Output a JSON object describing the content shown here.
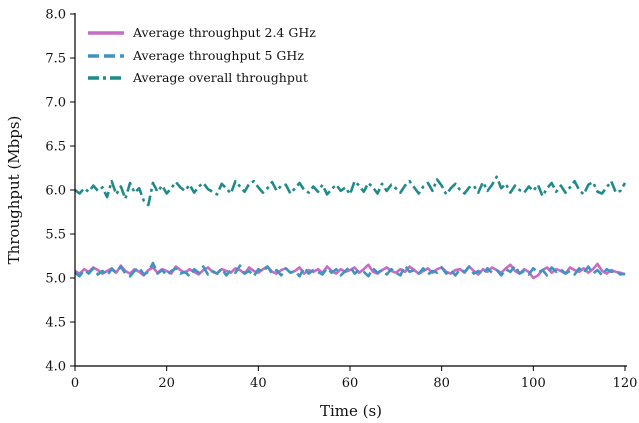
{
  "chart_data": {
    "type": "line",
    "title": "",
    "xlabel": "Time (s)",
    "ylabel": "Throughput (Mbps)",
    "xlim": [
      0,
      120
    ],
    "ylim": [
      4.0,
      8.0
    ],
    "x_ticks": [
      "0",
      "20",
      "40",
      "60",
      "80",
      "100",
      "120"
    ],
    "y_ticks": [
      "4.0",
      "4.5",
      "5.0",
      "5.5",
      "6.0",
      "6.5",
      "7.0",
      "7.5",
      "8.0"
    ],
    "grid": false,
    "legend_position": "top-left",
    "x": [
      0,
      1,
      2,
      3,
      4,
      5,
      6,
      7,
      8,
      9,
      10,
      11,
      12,
      13,
      14,
      15,
      16,
      17,
      18,
      19,
      20,
      21,
      22,
      23,
      24,
      25,
      26,
      27,
      28,
      29,
      30,
      31,
      32,
      33,
      34,
      35,
      36,
      37,
      38,
      39,
      40,
      41,
      42,
      43,
      44,
      45,
      46,
      47,
      48,
      49,
      50,
      51,
      52,
      53,
      54,
      55,
      56,
      57,
      58,
      59,
      60,
      61,
      62,
      63,
      64,
      65,
      66,
      67,
      68,
      69,
      70,
      71,
      72,
      73,
      74,
      75,
      76,
      77,
      78,
      79,
      80,
      81,
      82,
      83,
      84,
      85,
      86,
      87,
      88,
      89,
      90,
      91,
      92,
      93,
      94,
      95,
      96,
      97,
      98,
      99,
      100,
      101,
      102,
      103,
      104,
      105,
      106,
      107,
      108,
      109,
      110,
      111,
      112,
      113,
      114,
      115,
      116,
      117,
      118,
      119,
      120
    ],
    "series": [
      {
        "name": "Average throughput 2.4 GHz",
        "color": "#c76bc6",
        "style": "solid",
        "values": [
          5.08,
          5.05,
          5.1,
          5.07,
          5.12,
          5.09,
          5.05,
          5.08,
          5.11,
          5.06,
          5.14,
          5.08,
          5.05,
          5.1,
          5.07,
          5.03,
          5.09,
          5.12,
          5.06,
          5.1,
          5.08,
          5.05,
          5.13,
          5.09,
          5.06,
          5.1,
          5.07,
          5.04,
          5.09,
          5.12,
          5.07,
          5.05,
          5.1,
          5.08,
          5.06,
          5.11,
          5.09,
          5.05,
          5.12,
          5.08,
          5.06,
          5.1,
          5.13,
          5.07,
          5.05,
          5.09,
          5.11,
          5.06,
          5.08,
          5.12,
          5.05,
          5.09,
          5.07,
          5.1,
          5.06,
          5.13,
          5.08,
          5.05,
          5.1,
          5.07,
          5.09,
          5.12,
          5.06,
          5.1,
          5.15,
          5.07,
          5.05,
          5.09,
          5.12,
          5.08,
          5.06,
          5.1,
          5.07,
          5.13,
          5.09,
          5.05,
          5.08,
          5.11,
          5.06,
          5.1,
          5.12,
          5.07,
          5.05,
          5.09,
          5.1,
          5.06,
          5.13,
          5.08,
          5.04,
          5.1,
          5.07,
          5.12,
          5.09,
          5.06,
          5.11,
          5.15,
          5.08,
          5.05,
          5.1,
          5.07,
          5.0,
          5.03,
          5.09,
          5.12,
          5.06,
          5.1,
          5.08,
          5.05,
          5.12,
          5.09,
          5.07,
          5.11,
          5.06,
          5.1,
          5.16,
          5.08,
          5.05,
          5.09,
          5.07,
          5.06,
          5.04
        ]
      },
      {
        "name": "Average throughput 5 GHz",
        "color": "#3d93c4",
        "style": "dashed",
        "values": [
          5.06,
          5.02,
          5.09,
          5.05,
          5.11,
          5.04,
          5.08,
          5.03,
          5.1,
          5.06,
          5.13,
          5.05,
          5.02,
          5.08,
          5.12,
          5.04,
          5.07,
          5.17,
          5.05,
          5.09,
          5.03,
          5.08,
          5.11,
          5.05,
          5.07,
          5.02,
          5.1,
          5.06,
          5.13,
          5.04,
          5.08,
          5.05,
          5.11,
          5.03,
          5.09,
          5.06,
          5.14,
          5.05,
          5.08,
          5.02,
          5.1,
          5.07,
          5.13,
          5.05,
          5.09,
          5.03,
          5.11,
          5.06,
          5.08,
          5.02,
          5.12,
          5.05,
          5.09,
          5.07,
          5.04,
          5.11,
          5.06,
          5.1,
          5.03,
          5.08,
          5.13,
          5.05,
          5.09,
          5.07,
          5.02,
          5.11,
          5.06,
          5.09,
          5.04,
          5.1,
          5.06,
          5.03,
          5.14,
          5.07,
          5.09,
          5.05,
          5.11,
          5.04,
          5.08,
          5.06,
          5.12,
          5.05,
          5.09,
          5.03,
          5.1,
          5.07,
          5.13,
          5.05,
          5.08,
          5.04,
          5.11,
          5.06,
          5.09,
          5.03,
          5.1,
          5.07,
          5.14,
          5.05,
          5.08,
          5.04,
          5.11,
          5.06,
          5.09,
          5.03,
          5.12,
          5.07,
          5.1,
          5.05,
          5.08,
          5.04,
          5.11,
          5.06,
          5.13,
          5.05,
          5.09,
          5.03,
          5.1,
          5.07,
          5.08,
          5.04,
          5.05
        ]
      },
      {
        "name": "Average overall throughput",
        "color": "#1f8a8a",
        "style": "dashdot",
        "values": [
          6.0,
          5.96,
          6.02,
          5.98,
          6.05,
          5.99,
          6.03,
          5.92,
          6.1,
          5.95,
          6.04,
          5.9,
          6.08,
          5.97,
          6.02,
          5.88,
          5.83,
          6.08,
          5.98,
          6.05,
          5.96,
          6.02,
          6.09,
          6.03,
          5.99,
          6.06,
          5.97,
          6.04,
          6.08,
          6.01,
          5.98,
          5.95,
          6.07,
          6.02,
          5.96,
          6.1,
          6.04,
          5.98,
          6.07,
          6.1,
          6.03,
          5.97,
          6.02,
          6.09,
          5.99,
          6.05,
          6.06,
          5.96,
          6.02,
          6.08,
          6.0,
          5.97,
          6.04,
          5.98,
          6.06,
          5.95,
          6.01,
          6.06,
          5.99,
          6.03,
          5.95,
          6.1,
          6.05,
          5.98,
          6.08,
          6.03,
          5.96,
          6.07,
          5.99,
          6.06,
          6.02,
          5.97,
          6.05,
          6.1,
          6.03,
          5.96,
          6.04,
          6.08,
          5.99,
          6.12,
          6.05,
          5.95,
          6.02,
          6.07,
          6.0,
          5.96,
          6.03,
          6.05,
          5.97,
          6.09,
          5.99,
          6.06,
          6.15,
          6.02,
          6.07,
          5.97,
          6.05,
          6.0,
          5.97,
          6.04,
          5.99,
          6.06,
          5.93,
          6.02,
          6.08,
          5.98,
          6.05,
          5.97,
          6.03,
          6.1,
          6.0,
          5.95,
          6.06,
          6.09,
          5.98,
          5.96,
          6.03,
          6.1,
          5.97,
          5.99,
          6.08
        ]
      }
    ]
  }
}
